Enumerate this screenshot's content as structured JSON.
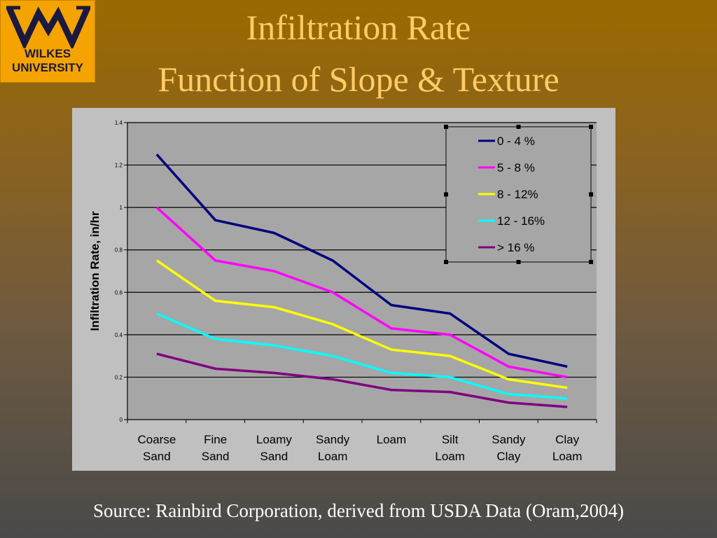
{
  "logo": {
    "line1": "WILKES",
    "line2": "UNIVERSITY",
    "colors": {
      "background": "#f4a300",
      "mark": "#1a1a40"
    }
  },
  "slide": {
    "title_line1": "Infiltration Rate",
    "title_line2": "Function of Slope & Texture",
    "source": "Source: Rainbird Corporation, derived from USDA Data (Oram,2004)"
  },
  "chart_data": {
    "type": "line",
    "title": "",
    "ylabel": "Infiltration Rate, in/hr",
    "xlabel": "",
    "ylim": [
      0,
      1.4
    ],
    "yticks": [
      "0",
      "0.2",
      "0.4",
      "0.6",
      "0.8",
      "1",
      "1.2",
      "1.4"
    ],
    "grid": true,
    "legend_position": "top-right",
    "categories": [
      [
        "Coarse",
        "Sand"
      ],
      [
        "Fine",
        "Sand"
      ],
      [
        "Loamy",
        "Sand"
      ],
      [
        "Sandy",
        "Loam"
      ],
      [
        "Loam"
      ],
      [
        "Silt",
        "Loam"
      ],
      [
        "Sandy",
        "Clay"
      ],
      [
        "Clay",
        "Loam"
      ]
    ],
    "series": [
      {
        "name": "0 - 4 %",
        "color": "#000080",
        "values": [
          1.25,
          0.94,
          0.88,
          0.75,
          0.54,
          0.5,
          0.31,
          0.25
        ]
      },
      {
        "name": "5 - 8 %",
        "color": "#ff00ff",
        "values": [
          1.0,
          0.75,
          0.7,
          0.6,
          0.43,
          0.4,
          0.25,
          0.2
        ]
      },
      {
        "name": "8 - 12%",
        "color": "#ffff00",
        "values": [
          0.75,
          0.56,
          0.53,
          0.45,
          0.33,
          0.3,
          0.19,
          0.15
        ]
      },
      {
        "name": "12 - 16%",
        "color": "#00ffff",
        "values": [
          0.5,
          0.38,
          0.35,
          0.3,
          0.22,
          0.2,
          0.12,
          0.1
        ]
      },
      {
        "name": "> 16 %",
        "color": "#800080",
        "values": [
          0.31,
          0.24,
          0.22,
          0.19,
          0.14,
          0.13,
          0.08,
          0.06
        ]
      }
    ]
  }
}
